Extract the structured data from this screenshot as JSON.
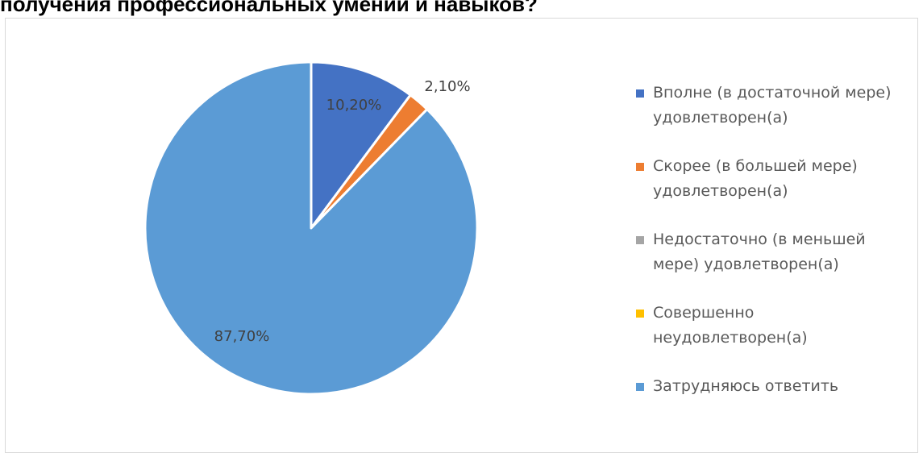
{
  "title": "получения профессиональных умений и навыков?",
  "colors": {
    "vpolne": "#4472c4",
    "skoree": "#ed7d31",
    "nedostatochno": "#a5a5a5",
    "sovershenno": "#ffc000",
    "zatrudnyayus": "#5b9bd5"
  },
  "chart_data": {
    "type": "pie",
    "title": "",
    "categories": [
      "Вполне (в достаточной мере) удовлетворен(а)",
      "Скорее (в большей мере) удовлетворен(а)",
      "Недостаточно (в меньшей мере) удовлетворен(а)",
      "Совершенно неудовлетворен(а)",
      "Затрудняюсь ответить"
    ],
    "values": [
      10.2,
      2.1,
      0,
      0,
      87.7
    ],
    "data_labels": [
      "10,20%",
      "2,10%",
      "",
      "",
      "87,70%"
    ],
    "legend_position": "right"
  },
  "legend": [
    {
      "line1": "Вполне (в достаточной мере)",
      "line2": "удовлетворен(а)",
      "color_key": "vpolne"
    },
    {
      "line1": "Скорее (в большей мере)",
      "line2": "удовлетворен(а)",
      "color_key": "skoree"
    },
    {
      "line1": "Недостаточно (в меньшей",
      "line2": "мере) удовлетворен(а)",
      "color_key": "nedostatochno"
    },
    {
      "line1": "Совершенно",
      "line2": "неудовлетворен(а)",
      "color_key": "sovershenno"
    },
    {
      "line1": "Затрудняюсь ответить",
      "line2": "",
      "color_key": "zatrudnyayus"
    }
  ]
}
